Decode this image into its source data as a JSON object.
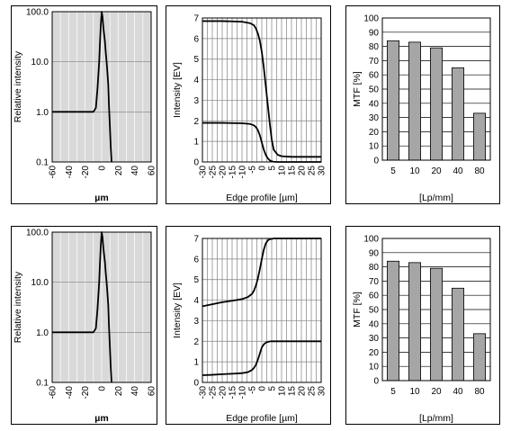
{
  "chart_data": [
    {
      "type": "line",
      "ylog": true,
      "background": "#d9d9d9",
      "ylabel": "Relative intensity",
      "xlabel": "µm",
      "x_ticks": [
        "-60",
        "-40",
        "-20",
        "0",
        "20",
        "40",
        "60"
      ],
      "x_range": [
        -60,
        60
      ],
      "x_minor_step": 10,
      "y_ticks": [
        "0.1",
        "1.0",
        "10.0",
        "100.0"
      ],
      "y_range": [
        0.1,
        100
      ],
      "series": [
        {
          "color": "#000000",
          "x": [
            -60,
            -20,
            -10,
            -7,
            -5,
            -3,
            -2,
            -1,
            0,
            1,
            2,
            3,
            4,
            5,
            6,
            7,
            8,
            9,
            10,
            11,
            12
          ],
          "y": [
            1,
            1,
            1,
            1.2,
            3,
            10,
            25,
            55,
            100,
            80,
            50,
            35,
            25,
            15,
            10,
            6,
            3.5,
            1.2,
            0.5,
            0.2,
            0.1
          ]
        }
      ]
    },
    {
      "type": "line",
      "ylog": false,
      "background": "#ffffff",
      "ylabel": "Intensity [EV]",
      "xlabel": "Edge profile [µm]",
      "x_ticks": [
        "-30",
        "-25",
        "-20",
        "-15",
        "-10",
        "-5",
        "0",
        "5",
        "10",
        "15",
        "20",
        "25",
        "30"
      ],
      "x_range": [
        -30,
        30
      ],
      "x_minor_step": 2.5,
      "y_ticks": [
        "0",
        "1",
        "2",
        "3",
        "4",
        "5",
        "6",
        "7"
      ],
      "y_range": [
        0,
        7
      ],
      "series": [
        {
          "color": "#000000",
          "x": [
            -30,
            -20,
            -10,
            -6,
            -4,
            -3,
            -2,
            -1,
            0,
            1,
            2,
            3,
            4,
            5,
            6,
            8,
            10,
            15,
            20,
            30
          ],
          "y": [
            6.85,
            6.85,
            6.82,
            6.75,
            6.65,
            6.5,
            6.25,
            5.9,
            5.35,
            4.6,
            3.7,
            2.8,
            1.9,
            1.1,
            0.6,
            0.35,
            0.28,
            0.25,
            0.25,
            0.25
          ]
        },
        {
          "color": "#000000",
          "x": [
            -30,
            -20,
            -10,
            -6,
            -4,
            -3,
            -2,
            -1,
            0,
            1,
            2,
            3,
            4,
            5,
            6,
            8,
            10,
            15,
            20,
            30
          ],
          "y": [
            1.9,
            1.9,
            1.88,
            1.85,
            1.78,
            1.7,
            1.55,
            1.3,
            0.95,
            0.6,
            0.35,
            0.18,
            0.08,
            0.03,
            0.01,
            0,
            0,
            0,
            0,
            0
          ]
        }
      ]
    },
    {
      "type": "bar",
      "background": "#ffffff",
      "bar_color": "#a6a6a6",
      "ylabel": "MTF [%]",
      "xlabel": "[Lp/mm]",
      "categories": [
        "5",
        "10",
        "20",
        "40",
        "80"
      ],
      "values": [
        84,
        83,
        79,
        65,
        33
      ],
      "y_ticks": [
        "0",
        "10",
        "20",
        "30",
        "40",
        "50",
        "60",
        "70",
        "80",
        "90",
        "100"
      ],
      "ylim": [
        0,
        100
      ]
    },
    {
      "type": "line",
      "ylog": true,
      "background": "#d9d9d9",
      "ylabel": "Relative intensity",
      "xlabel": "µm",
      "x_ticks": [
        "-60",
        "-40",
        "-20",
        "0",
        "20",
        "40",
        "60"
      ],
      "x_range": [
        -60,
        60
      ],
      "x_minor_step": 10,
      "y_ticks": [
        "0.1",
        "1.0",
        "10.0",
        "100.0"
      ],
      "y_range": [
        0.1,
        100
      ],
      "series": [
        {
          "color": "#000000",
          "x": [
            -60,
            -20,
            -10,
            -7,
            -5,
            -3,
            -2,
            -1,
            0,
            1,
            2,
            3,
            4,
            5,
            6,
            7,
            8,
            9,
            10,
            11,
            12
          ],
          "y": [
            1,
            1,
            1,
            1.2,
            3,
            10,
            25,
            55,
            100,
            80,
            50,
            35,
            25,
            15,
            10,
            6,
            3.5,
            1.2,
            0.5,
            0.2,
            0.1
          ]
        }
      ]
    },
    {
      "type": "line",
      "ylog": false,
      "background": "#ffffff",
      "ylabel": "Intensity [EV]",
      "xlabel": "Edge profile [µm]",
      "x_ticks": [
        "-30",
        "-25",
        "-20",
        "-15",
        "-10",
        "-5",
        "0",
        "5",
        "10",
        "15",
        "20",
        "25",
        "30"
      ],
      "x_range": [
        -30,
        30
      ],
      "x_minor_step": 2.5,
      "y_ticks": [
        "0",
        "1",
        "2",
        "3",
        "4",
        "5",
        "6",
        "7"
      ],
      "y_range": [
        0,
        7
      ],
      "series": [
        {
          "color": "#000000",
          "x": [
            -30,
            -25,
            -20,
            -15,
            -10,
            -7,
            -5,
            -4,
            -3,
            -2,
            -1,
            0,
            1,
            2,
            3,
            4,
            5,
            6,
            8,
            10,
            15,
            20,
            30
          ],
          "y": [
            3.7,
            3.8,
            3.9,
            3.97,
            4.05,
            4.15,
            4.3,
            4.45,
            4.7,
            5.05,
            5.5,
            6.0,
            6.45,
            6.75,
            6.9,
            6.96,
            6.98,
            7.0,
            7.0,
            7.0,
            7.0,
            7.0,
            7.0
          ]
        },
        {
          "color": "#000000",
          "x": [
            -30,
            -25,
            -20,
            -15,
            -10,
            -7,
            -5,
            -4,
            -3,
            -2,
            -1,
            0,
            1,
            2,
            3,
            4,
            5,
            6,
            8,
            10,
            15,
            20,
            30
          ],
          "y": [
            0.35,
            0.37,
            0.4,
            0.42,
            0.45,
            0.5,
            0.6,
            0.7,
            0.85,
            1.1,
            1.4,
            1.7,
            1.85,
            1.93,
            1.97,
            1.99,
            2.0,
            2.0,
            2.0,
            2.0,
            2.0,
            2.0,
            2.0
          ]
        }
      ]
    },
    {
      "type": "bar",
      "background": "#ffffff",
      "bar_color": "#a6a6a6",
      "ylabel": "MTF [%]",
      "xlabel": "[Lp/mm]",
      "categories": [
        "5",
        "10",
        "20",
        "40",
        "80"
      ],
      "values": [
        84,
        83,
        79,
        65,
        33
      ],
      "y_ticks": [
        "0",
        "10",
        "20",
        "30",
        "40",
        "50",
        "60",
        "70",
        "80",
        "90",
        "100"
      ],
      "ylim": [
        0,
        100
      ]
    }
  ]
}
